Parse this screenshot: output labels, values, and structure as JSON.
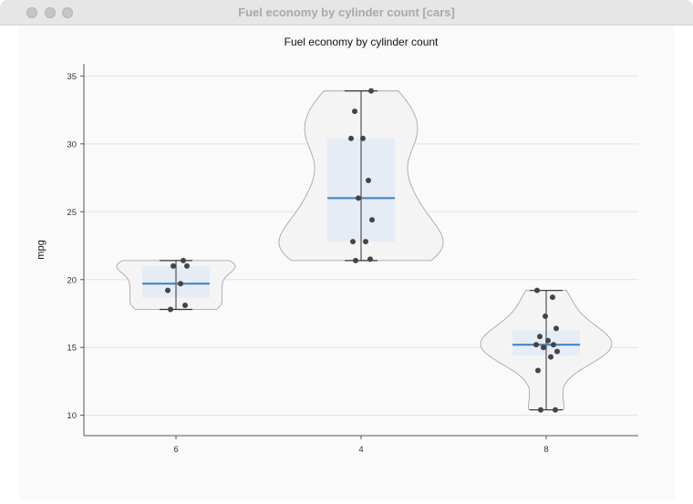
{
  "window": {
    "title": "Fuel economy by cylinder count [cars]"
  },
  "chart_data": {
    "type": "violin",
    "title": "Fuel economy by cylinder count",
    "xlabel": "",
    "ylabel": "mpg",
    "ylim": [
      8.5,
      35.9
    ],
    "yticks": [
      10,
      15,
      20,
      25,
      30,
      35
    ],
    "grid": true,
    "categories": [
      "6",
      "4",
      "8"
    ],
    "groups": [
      {
        "category": "6",
        "min": 17.8,
        "q1": 18.65,
        "median": 19.7,
        "q3": 21.0,
        "max": 21.4,
        "points": [
          17.8,
          18.1,
          19.2,
          19.7,
          21.0,
          21.0,
          21.4
        ]
      },
      {
        "category": "4",
        "min": 21.4,
        "q1": 22.8,
        "median": 26.0,
        "q3": 30.4,
        "max": 33.9,
        "points": [
          21.4,
          21.5,
          22.8,
          22.8,
          24.4,
          26.0,
          27.3,
          30.4,
          30.4,
          32.4,
          33.9
        ]
      },
      {
        "category": "8",
        "min": 10.4,
        "q1": 14.4,
        "median": 15.2,
        "q3": 16.25,
        "max": 19.2,
        "points": [
          10.4,
          10.4,
          13.3,
          14.3,
          14.7,
          15.0,
          15.2,
          15.2,
          15.5,
          15.8,
          16.4,
          17.3,
          18.7,
          19.2
        ]
      }
    ],
    "colors": {
      "violin_fill": "#f4f4f4",
      "violin_stroke": "#9e9e9e",
      "box_fill": "#e6ecf5",
      "median": "#3a7fc1",
      "point": "#444444",
      "grid": "#e2e2e2"
    }
  }
}
